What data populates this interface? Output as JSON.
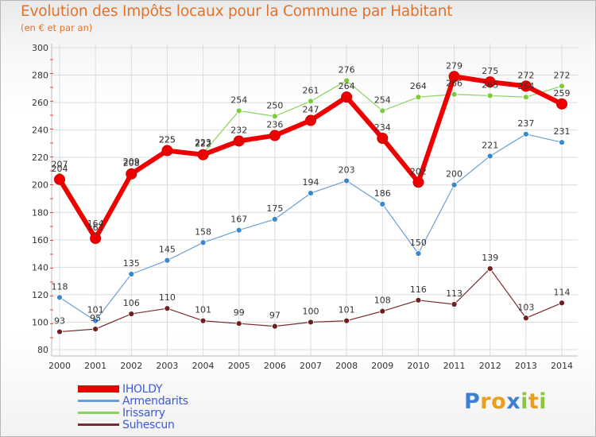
{
  "title": "Evolution des Impôts locaux pour la Commune par Habitant",
  "subtitle": "(en € et par an)",
  "logo": {
    "text": "Proxiti",
    "letters": [
      {
        "ch": "P",
        "color": "#3d7fd0"
      },
      {
        "ch": "r",
        "color": "#e8a020"
      },
      {
        "ch": "o",
        "color": "#e8a020"
      },
      {
        "ch": "x",
        "color": "#3d7fd0"
      },
      {
        "ch": "i",
        "color": "#8cc63f"
      },
      {
        "ch": "t",
        "color": "#e8a020"
      },
      {
        "ch": "i",
        "color": "#8cc63f"
      }
    ]
  },
  "chart_data": {
    "type": "line",
    "title": "Evolution des Impôts locaux pour la Commune par Habitant",
    "subtitle": "(en € et par an)",
    "xlabel": "",
    "ylabel": "",
    "x": [
      "2000",
      "2001",
      "2002",
      "2003",
      "2004",
      "2005",
      "2006",
      "2007",
      "2008",
      "2009",
      "2010",
      "2011",
      "2012",
      "2013",
      "2014"
    ],
    "ylim": [
      80,
      300
    ],
    "yticks": [
      80,
      100,
      120,
      140,
      160,
      180,
      200,
      220,
      240,
      260,
      280,
      300
    ],
    "grid": true,
    "legend_position": "bottom-left",
    "series": [
      {
        "name": "IHOLDY",
        "color": "#ee0000",
        "marker": "#ee0000",
        "values": [
          204,
          161,
          208,
          225,
          222,
          232,
          236,
          247,
          264,
          234,
          202,
          279,
          275,
          272,
          259
        ]
      },
      {
        "name": "Armendarits",
        "color": "#6a9fd4",
        "marker": "#3a87cc",
        "values": [
          118,
          101,
          135,
          145,
          158,
          167,
          175,
          194,
          203,
          186,
          150,
          200,
          221,
          237,
          231
        ]
      },
      {
        "name": "Irissarry",
        "color": "#8ad35b",
        "marker": "#7cc93a",
        "values": [
          207,
          164,
          209,
          225,
          223,
          254,
          250,
          261,
          276,
          254,
          264,
          266,
          265,
          264,
          272
        ]
      },
      {
        "name": "Suhescun",
        "color": "#7a2c2c",
        "marker": "#6e2020",
        "values": [
          93,
          95,
          106,
          110,
          101,
          99,
          97,
          100,
          101,
          108,
          116,
          113,
          139,
          103,
          114
        ]
      }
    ],
    "point_labels": {
      "IHOLDY": [
        "204",
        "161",
        "208",
        "225",
        "222",
        "232",
        "236",
        "247",
        "264",
        "234",
        "202",
        "279",
        "275",
        "272",
        "259"
      ],
      "Armendarits": [
        "118",
        "101",
        "135",
        "145",
        "158",
        "167",
        "175",
        "194",
        "203",
        "186",
        "150",
        "200",
        "221",
        "237",
        "231"
      ],
      "Irissarry": [
        "207",
        "164",
        "209",
        "225",
        "223",
        "254",
        "250",
        "261",
        "276",
        "254",
        "264",
        "266",
        "265",
        "264",
        "272"
      ],
      "Suhescun": [
        "93",
        "95",
        "106",
        "110",
        "101",
        "99",
        "97",
        "100",
        "101",
        "108",
        "116",
        "113",
        "139",
        "103",
        "114"
      ]
    }
  }
}
